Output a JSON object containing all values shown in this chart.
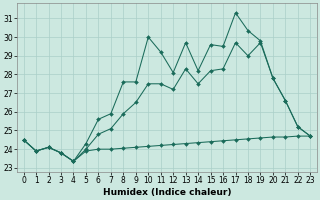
{
  "xlabel": "Humidex (Indice chaleur)",
  "background_color": "#cce8e0",
  "grid_color": "#aacfc8",
  "line_color": "#1a6b5a",
  "xlim": [
    -0.5,
    23.5
  ],
  "ylim": [
    22.8,
    31.8
  ],
  "yticks": [
    23,
    24,
    25,
    26,
    27,
    28,
    29,
    30,
    31
  ],
  "xticks": [
    0,
    1,
    2,
    3,
    4,
    5,
    6,
    7,
    8,
    9,
    10,
    11,
    12,
    13,
    14,
    15,
    16,
    17,
    18,
    19,
    20,
    21,
    22,
    23
  ],
  "xtick_labels": [
    "0",
    "1",
    "2",
    "3",
    "4",
    "5",
    "6",
    "7",
    "8",
    "9",
    "10",
    "11",
    "12",
    "13",
    "14",
    "15",
    "16",
    "17",
    "18",
    "19",
    "20",
    "21",
    "22",
    "23"
  ],
  "series_min_y": [
    24.5,
    23.9,
    24.1,
    23.8,
    23.35,
    23.9,
    24.0,
    24.0,
    24.05,
    24.1,
    24.15,
    24.2,
    24.25,
    24.3,
    24.35,
    24.4,
    24.45,
    24.5,
    24.55,
    24.6,
    24.65,
    24.65,
    24.7,
    24.7
  ],
  "series_max_y": [
    24.5,
    23.9,
    24.1,
    23.8,
    23.35,
    24.3,
    25.6,
    25.9,
    27.6,
    27.6,
    30.0,
    29.2,
    28.1,
    29.7,
    28.2,
    29.6,
    29.5,
    31.3,
    30.35,
    29.8,
    27.8,
    26.6,
    25.2,
    24.7
  ],
  "series_mid_y": [
    24.5,
    23.9,
    24.1,
    23.8,
    23.35,
    24.0,
    24.8,
    25.1,
    25.9,
    26.5,
    27.5,
    27.5,
    27.2,
    28.3,
    27.5,
    28.2,
    28.3,
    29.7,
    29.0,
    29.7,
    27.8,
    26.6,
    25.2,
    24.7
  ]
}
